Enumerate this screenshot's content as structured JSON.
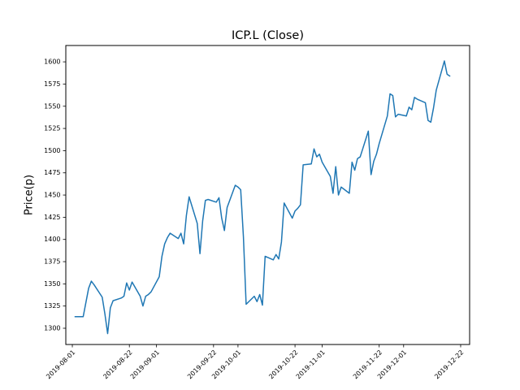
{
  "figure": {
    "background": "#ffffff",
    "text_color": "#000000",
    "spine_color": "#000000"
  },
  "chart_data": {
    "type": "line",
    "title": "ICP.L (Close)",
    "xlabel": "",
    "ylabel": "Price(p)",
    "grid": false,
    "legend": null,
    "line_color": "#1f77b4",
    "line_width": 1.5,
    "ytick_values": [
      1300,
      1325,
      1350,
      1375,
      1400,
      1425,
      1450,
      1475,
      1500,
      1525,
      1550,
      1575,
      1600
    ],
    "xtick_labels": [
      "2019-08-01",
      "2019-08-22",
      "2019-09-01",
      "2019-09-22",
      "2019-10-01",
      "2019-10-22",
      "2019-11-01",
      "2019-11-22",
      "2019-12-01",
      "2019-12-22"
    ],
    "ylim": [
      1281.7,
      1618.4
    ],
    "x_axis": {
      "origin_date": "2019-08-01",
      "range_days": [
        -2.4,
        146.3
      ]
    },
    "x_dates": [
      "2019-08-02",
      "2019-08-05",
      "2019-08-06",
      "2019-08-07",
      "2019-08-08",
      "2019-08-09",
      "2019-08-12",
      "2019-08-13",
      "2019-08-14",
      "2019-08-15",
      "2019-08-16",
      "2019-08-19",
      "2019-08-20",
      "2019-08-21",
      "2019-08-22",
      "2019-08-23",
      "2019-08-26",
      "2019-08-27",
      "2019-08-28",
      "2019-08-29",
      "2019-08-30",
      "2019-09-02",
      "2019-09-03",
      "2019-09-04",
      "2019-09-05",
      "2019-09-06",
      "2019-09-09",
      "2019-09-10",
      "2019-09-11",
      "2019-09-12",
      "2019-09-13",
      "2019-09-16",
      "2019-09-17",
      "2019-09-18",
      "2019-09-19",
      "2019-09-20",
      "2019-09-23",
      "2019-09-24",
      "2019-09-25",
      "2019-09-26",
      "2019-09-27",
      "2019-09-30",
      "2019-10-01",
      "2019-10-02",
      "2019-10-03",
      "2019-10-04",
      "2019-10-07",
      "2019-10-08",
      "2019-10-09",
      "2019-10-10",
      "2019-10-11",
      "2019-10-14",
      "2019-10-15",
      "2019-10-16",
      "2019-10-17",
      "2019-10-18",
      "2019-10-21",
      "2019-10-22",
      "2019-10-23",
      "2019-10-24",
      "2019-10-25",
      "2019-10-28",
      "2019-10-29",
      "2019-10-30",
      "2019-10-31",
      "2019-11-01",
      "2019-11-04",
      "2019-11-05",
      "2019-11-06",
      "2019-11-07",
      "2019-11-08",
      "2019-11-11",
      "2019-11-12",
      "2019-11-13",
      "2019-11-14",
      "2019-11-15",
      "2019-11-18",
      "2019-11-19",
      "2019-11-20",
      "2019-11-21",
      "2019-11-22",
      "2019-11-25",
      "2019-11-26",
      "2019-11-27",
      "2019-11-28",
      "2019-11-29",
      "2019-12-02",
      "2019-12-03",
      "2019-12-04",
      "2019-12-05",
      "2019-12-06",
      "2019-12-09",
      "2019-12-10",
      "2019-12-11",
      "2019-12-12",
      "2019-12-13",
      "2019-12-16",
      "2019-12-17",
      "2019-12-18"
    ],
    "values": [
      1313,
      1313,
      1329,
      1345,
      1353,
      1349,
      1335,
      1316,
      1294,
      1323,
      1331,
      1334,
      1336,
      1351,
      1343,
      1352,
      1336,
      1325,
      1336,
      1338,
      1341,
      1358,
      1381,
      1395,
      1402,
      1407,
      1401,
      1407,
      1395,
      1427,
      1448,
      1418,
      1384,
      1421,
      1444,
      1445,
      1442,
      1447,
      1424,
      1410,
      1436,
      1461,
      1459,
      1456,
      1403,
      1327,
      1336,
      1330,
      1338,
      1326,
      1381,
      1377,
      1383,
      1378,
      1397,
      1441,
      1424,
      1432,
      1435,
      1439,
      1484,
      1485,
      1502,
      1493,
      1496,
      1487,
      1471,
      1452,
      1482,
      1450,
      1459,
      1452,
      1487,
      1478,
      1491,
      1493,
      1522,
      1473,
      1488,
      1496,
      1508,
      1539,
      1564,
      1562,
      1538,
      1541,
      1539,
      1549,
      1546,
      1560,
      1558,
      1554,
      1534,
      1532,
      1548,
      1568,
      1601,
      1586,
      1584
    ]
  }
}
